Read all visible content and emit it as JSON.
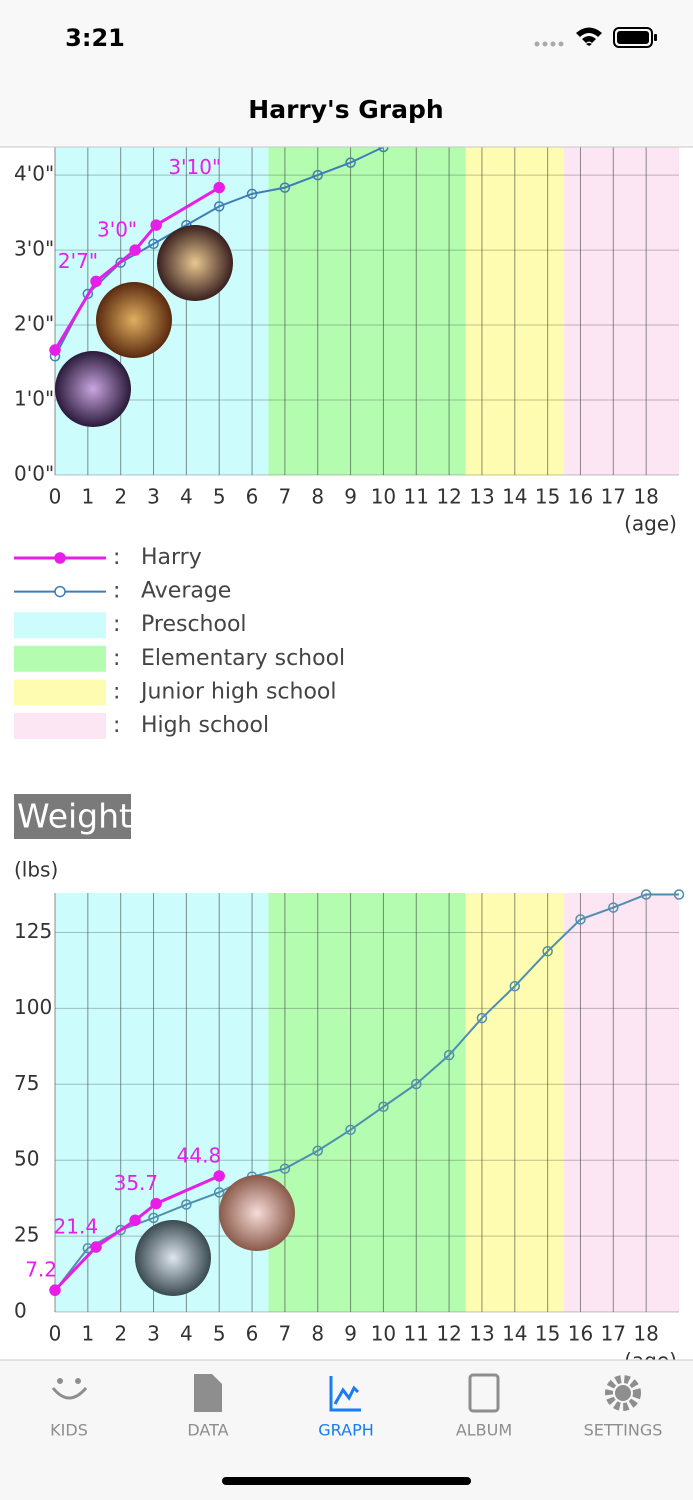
{
  "status_bar": {
    "time": "3:21"
  },
  "nav": {
    "title": "Harry's Graph"
  },
  "chart_data": [
    {
      "type": "line",
      "grid": true,
      "legend": true,
      "xlabel": "(age)",
      "xlim": [
        0,
        19
      ],
      "xticks": [
        0,
        1,
        2,
        3,
        4,
        5,
        6,
        7,
        8,
        9,
        10,
        11,
        12,
        13,
        14,
        15,
        16,
        17,
        18
      ],
      "ylim": [
        0,
        52.5
      ],
      "yticks": [
        {
          "value": 0,
          "label": "0'0\""
        },
        {
          "value": 12,
          "label": "1'0\""
        },
        {
          "value": 24,
          "label": "2'0\""
        },
        {
          "value": 36,
          "label": "3'0\""
        },
        {
          "value": 48,
          "label": "4'0\""
        }
      ],
      "bands": [
        {
          "name": "Preschool",
          "color": "#ccfcfc",
          "from": 0,
          "to": 6.5
        },
        {
          "name": "Elementary school",
          "color": "#b3fcb0",
          "from": 6.5,
          "to": 12.5
        },
        {
          "name": "Junior high school",
          "color": "#fdfcb0",
          "from": 12.5,
          "to": 15.5
        },
        {
          "name": "High school",
          "color": "#fce6f3",
          "from": 15.5,
          "to": 19
        }
      ],
      "series": [
        {
          "name": "Harry",
          "color": "#e81ee8",
          "marker": "filled",
          "x": [
            0,
            1.25,
            2.44,
            3.08,
            5
          ],
          "values": [
            20,
            31,
            36,
            40,
            46
          ],
          "value_labels": [
            null,
            "2'7\"",
            "3'0\"",
            null,
            "3'10\""
          ]
        },
        {
          "name": "Average",
          "color": "#3f7db5",
          "marker": "open",
          "x": [
            0,
            1,
            2,
            3,
            4,
            5,
            6,
            7,
            8,
            9,
            10
          ],
          "values": [
            19,
            29,
            34,
            37,
            40,
            43,
            45,
            46,
            48,
            50,
            52.5
          ]
        }
      ]
    },
    {
      "type": "line",
      "grid": true,
      "legend": false,
      "title": "Weight",
      "ylabel": "(lbs)",
      "xlabel": "(age)",
      "xlim": [
        0,
        19
      ],
      "xticks": [
        0,
        1,
        2,
        3,
        4,
        5,
        6,
        7,
        8,
        9,
        10,
        11,
        12,
        13,
        14,
        15,
        16,
        17,
        18
      ],
      "ylim": [
        0,
        138
      ],
      "yticks": [
        0,
        25,
        50,
        75,
        100,
        125
      ],
      "bands": [
        {
          "name": "Preschool",
          "color": "#ccfcfc",
          "from": 0,
          "to": 6.5
        },
        {
          "name": "Elementary school",
          "color": "#b3fcb0",
          "from": 6.5,
          "to": 12.5
        },
        {
          "name": "Junior high school",
          "color": "#fdfcb0",
          "from": 12.5,
          "to": 15.5
        },
        {
          "name": "High school",
          "color": "#fce6f3",
          "from": 15.5,
          "to": 19
        }
      ],
      "series": [
        {
          "name": "Harry",
          "color": "#e81ee8",
          "marker": "filled",
          "x": [
            0,
            1.25,
            2.44,
            3.08,
            5
          ],
          "values": [
            7.2,
            21.4,
            30.2,
            35.7,
            44.8
          ],
          "value_labels": [
            "7.2",
            "21.4",
            null,
            "35.7",
            "44.8"
          ]
        },
        {
          "name": "Average",
          "color": "#4f8fae",
          "marker": "open",
          "x": [
            0,
            1,
            2,
            3,
            4,
            5,
            6,
            7,
            8,
            9,
            10,
            11,
            12,
            13,
            14,
            15,
            16,
            17,
            18,
            19
          ],
          "values": [
            7,
            21,
            27,
            31,
            35.4,
            39.4,
            44.6,
            47.2,
            53.1,
            60,
            67.6,
            75.1,
            84.6,
            96.8,
            107.3,
            118.8,
            129.3,
            133.2,
            137.5,
            137.5
          ]
        }
      ]
    }
  ],
  "tab_bar": {
    "tabs": [
      "KIDS",
      "DATA",
      "GRAPH",
      "ALBUM",
      "SETTINGS"
    ],
    "active": 2
  }
}
